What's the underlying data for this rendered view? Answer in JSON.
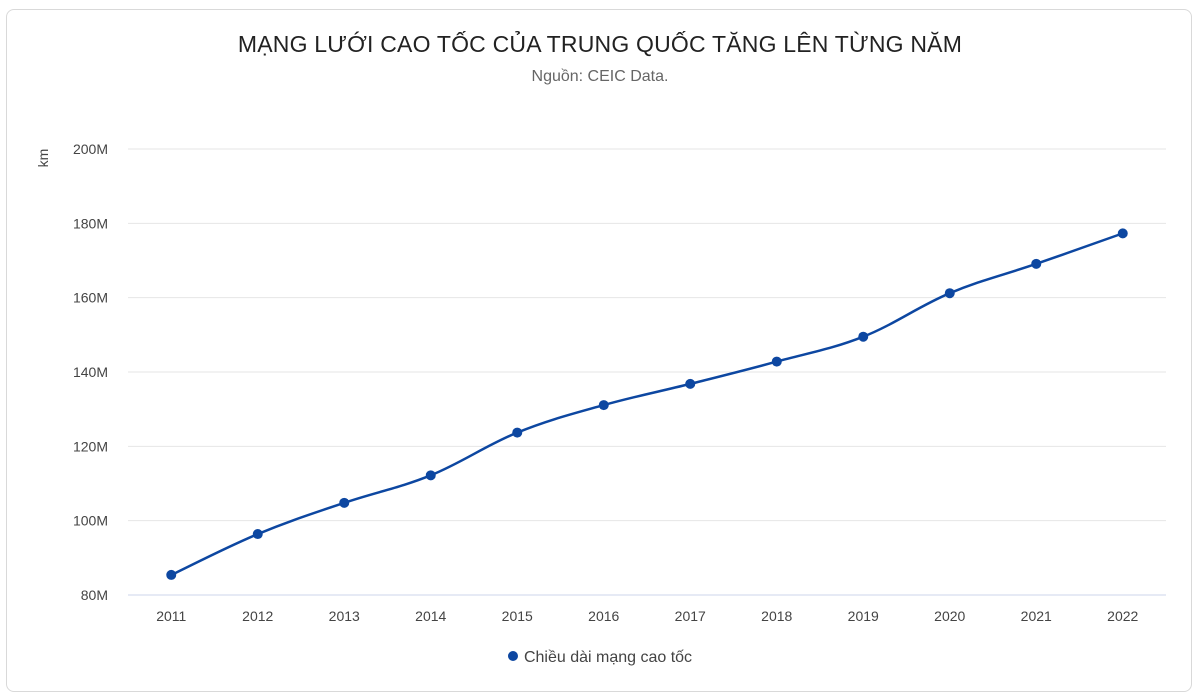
{
  "chart_data": {
    "type": "line",
    "title": "MẠNG LƯỚI CAO TỐC CỦA TRUNG QUỐC TĂNG LÊN TỪNG NĂM",
    "subtitle": "Nguồn: CEIC Data.",
    "xlabel": "",
    "ylabel": "km",
    "categories": [
      "2011",
      "2012",
      "2013",
      "2014",
      "2015",
      "2016",
      "2017",
      "2018",
      "2019",
      "2020",
      "2021",
      "2022"
    ],
    "series": [
      {
        "name": "Chiều dài mạng cao tốc",
        "color": "#0d47a1",
        "values": [
          85.4,
          96.4,
          104.8,
          112.2,
          123.7,
          131.1,
          136.8,
          142.8,
          149.5,
          161.2,
          169.1,
          177.3
        ],
        "unit": "M"
      }
    ],
    "ylim": [
      80,
      200
    ],
    "yticks": [
      80,
      100,
      120,
      140,
      160,
      180,
      200
    ],
    "ytick_labels": [
      "80M",
      "100M",
      "120M",
      "140M",
      "160M",
      "180M",
      "200M"
    ],
    "grid": true,
    "legend_position": "bottom"
  },
  "colors": {
    "series": "#0d47a1",
    "grid": "#e6e6e6",
    "axis": "#ccd6eb"
  }
}
